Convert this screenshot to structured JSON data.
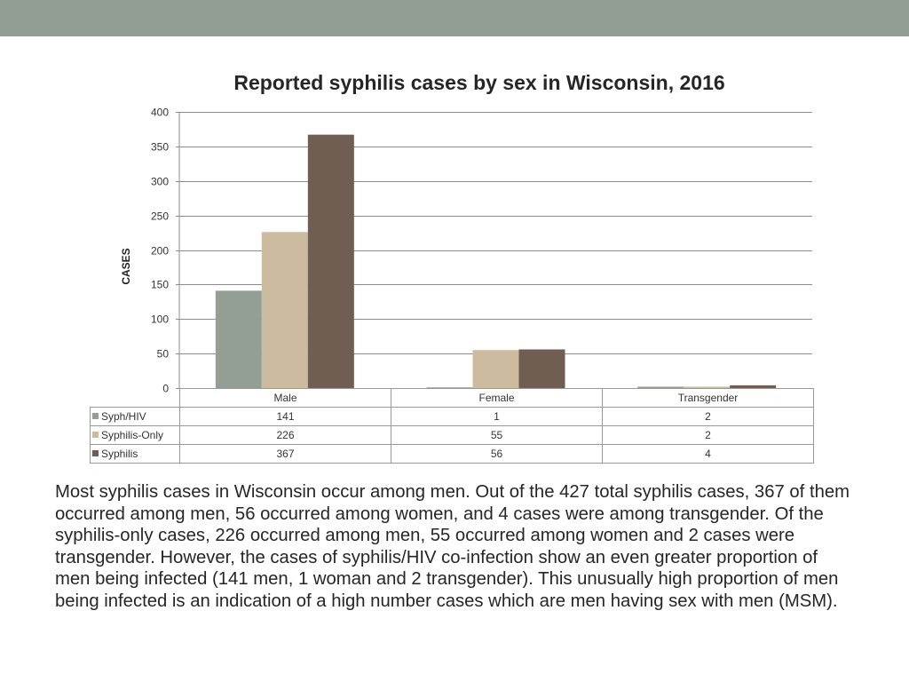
{
  "chart_data": {
    "type": "bar",
    "title": "Reported syphilis cases by sex in Wisconsin, 2016",
    "xlabel": "",
    "ylabel": "CASES",
    "ylim": [
      0,
      400
    ],
    "yticks": [
      "0",
      "50",
      "100",
      "150",
      "200",
      "250",
      "300",
      "350",
      "400"
    ],
    "grid": true,
    "legend": "table-below",
    "categories": [
      "Male",
      "Female",
      "Transgender"
    ],
    "series": [
      {
        "name": "Syph/HIV",
        "values": [
          141,
          1,
          2
        ],
        "color": "#939e95"
      },
      {
        "name": "Syphilis-Only",
        "values": [
          226,
          55,
          2
        ],
        "color": "#cdbba0"
      },
      {
        "name": "Syphilis",
        "values": [
          367,
          56,
          4
        ],
        "color": "#715e53"
      }
    ]
  },
  "caption": "Most syphilis cases in Wisconsin occur among men. Out of the 427 total syphilis cases, 367 of them occurred among men, 56 occurred among women, and 4 cases were among transgender. Of the syphilis-only cases, 226 occurred among men, 55 occurred among women and 2 cases were transgender. However, the cases of syphilis/HIV co-infection show an even greater proportion of men being infected (141 men, 1 woman and 2 transgender).  This unusually high proportion of men being infected is an indication of a high number cases which are men having sex with men (MSM).",
  "colors": {
    "band": "#929d94",
    "grid": "#8c8c8c"
  }
}
